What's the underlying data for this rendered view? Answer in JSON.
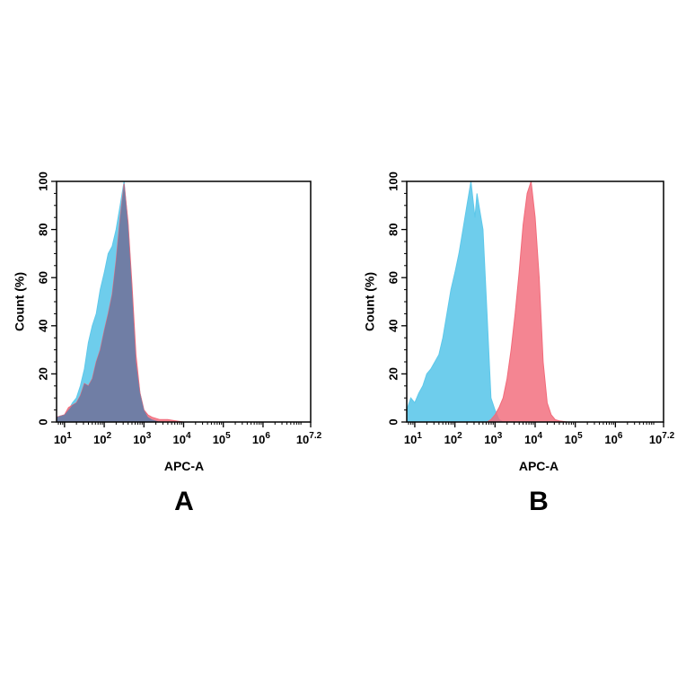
{
  "chart_data": [
    {
      "type": "area",
      "panel_label": "A",
      "xlabel": "APC-A",
      "ylabel": "Count  (%)",
      "x_scale": "log10",
      "xlim": [
        0.8,
        7.2
      ],
      "ylim": [
        0,
        100
      ],
      "x_ticks": [
        {
          "base": "10",
          "exp": "1",
          "value": 1
        },
        {
          "base": "10",
          "exp": "2",
          "value": 2
        },
        {
          "base": "10",
          "exp": "3",
          "value": 3
        },
        {
          "base": "10",
          "exp": "4",
          "value": 4
        },
        {
          "base": "10",
          "exp": "5",
          "value": 5
        },
        {
          "base": "10",
          "exp": "6",
          "value": 6
        },
        {
          "base": "10",
          "exp": "7.2",
          "value": 7.2
        }
      ],
      "y_ticks": [
        "0",
        "20",
        "40",
        "60",
        "80",
        "100"
      ],
      "grid": false,
      "series": [
        {
          "color": "#5ec8ea",
          "x": [
            0.8,
            1.0,
            1.1,
            1.2,
            1.3,
            1.4,
            1.5,
            1.6,
            1.7,
            1.8,
            1.9,
            2.0,
            2.1,
            2.2,
            2.3,
            2.4,
            2.5,
            2.6,
            2.7,
            2.8,
            2.9,
            3.0,
            3.1,
            3.2,
            3.4
          ],
          "y": [
            2,
            3,
            5,
            8,
            10,
            15,
            22,
            33,
            40,
            45,
            55,
            62,
            70,
            73,
            80,
            90,
            100,
            82,
            55,
            25,
            12,
            5,
            2,
            1,
            0
          ]
        },
        {
          "color": "#f26a7a",
          "x": [
            0.8,
            1.0,
            1.1,
            1.2,
            1.3,
            1.4,
            1.5,
            1.6,
            1.7,
            1.8,
            1.9,
            2.0,
            2.1,
            2.2,
            2.3,
            2.4,
            2.5,
            2.6,
            2.7,
            2.8,
            2.9,
            3.0,
            3.1,
            3.2,
            3.4,
            3.6,
            3.8,
            4.0
          ],
          "y": [
            2,
            3,
            6,
            7,
            8,
            11,
            16,
            15,
            18,
            25,
            30,
            38,
            45,
            53,
            67,
            85,
            99,
            83,
            57,
            28,
            12,
            5,
            3,
            2,
            1,
            1,
            0.5,
            0
          ]
        }
      ]
    },
    {
      "type": "area",
      "panel_label": "B",
      "xlabel": "APC-A",
      "ylabel": "Count  (%)",
      "x_scale": "log10",
      "xlim": [
        0.8,
        7.2
      ],
      "ylim": [
        0,
        100
      ],
      "x_ticks": [
        {
          "base": "10",
          "exp": "1",
          "value": 1
        },
        {
          "base": "10",
          "exp": "2",
          "value": 2
        },
        {
          "base": "10",
          "exp": "3",
          "value": 3
        },
        {
          "base": "10",
          "exp": "4",
          "value": 4
        },
        {
          "base": "10",
          "exp": "5",
          "value": 5
        },
        {
          "base": "10",
          "exp": "6",
          "value": 6
        },
        {
          "base": "10",
          "exp": "7.2",
          "value": 7.2
        }
      ],
      "y_ticks": [
        "0",
        "20",
        "40",
        "60",
        "80",
        "100"
      ],
      "grid": false,
      "series": [
        {
          "color": "#5ec8ea",
          "x": [
            0.8,
            0.9,
            1.0,
            1.1,
            1.2,
            1.3,
            1.4,
            1.5,
            1.6,
            1.7,
            1.8,
            1.9,
            2.0,
            2.1,
            2.2,
            2.3,
            2.4,
            2.5,
            2.55,
            2.6,
            2.7,
            2.8,
            2.9,
            3.0,
            3.05,
            3.1,
            3.2
          ],
          "y": [
            5,
            10,
            8,
            12,
            15,
            20,
            22,
            25,
            28,
            35,
            45,
            55,
            62,
            70,
            80,
            90,
            100,
            85,
            95,
            90,
            80,
            45,
            10,
            5,
            3,
            1,
            0
          ]
        },
        {
          "color": "#f26a7a",
          "x": [
            2.8,
            2.9,
            3.0,
            3.1,
            3.2,
            3.3,
            3.4,
            3.5,
            3.6,
            3.7,
            3.8,
            3.9,
            4.0,
            4.1,
            4.2,
            4.3,
            4.4,
            4.5,
            4.6,
            4.8
          ],
          "y": [
            0,
            1,
            3,
            6,
            10,
            18,
            30,
            45,
            62,
            82,
            95,
            100,
            85,
            60,
            25,
            8,
            3,
            1,
            0.5,
            0
          ]
        }
      ]
    }
  ]
}
